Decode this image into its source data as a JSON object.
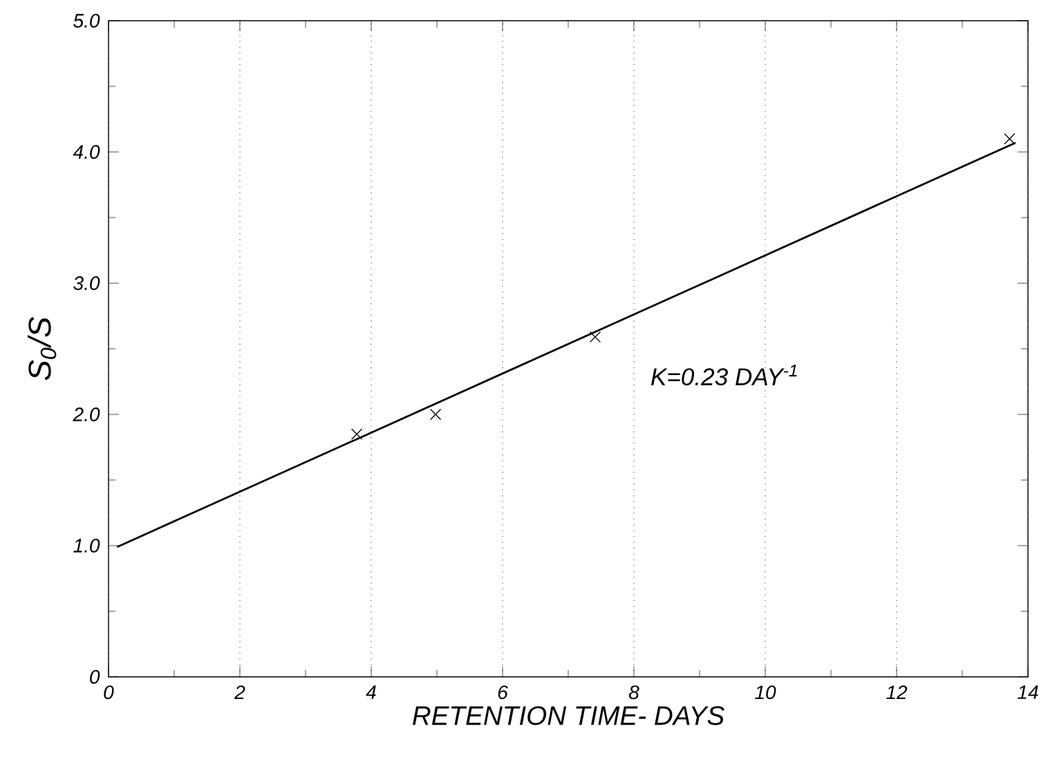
{
  "chart_data": {
    "type": "scatter",
    "xlabel": "RETENTION TIME- DAYS",
    "ylabel": "S$_{0}$/S",
    "xlim": [
      0,
      14
    ],
    "ylim": [
      0,
      5.0
    ],
    "xticks": [
      0,
      2,
      4,
      6,
      8,
      10,
      12,
      14
    ],
    "yticks": [
      0,
      {
        "value": 1,
        "label": "1.0"
      },
      {
        "value": 2,
        "label": "2.0"
      },
      {
        "value": 3,
        "label": "3.0"
      },
      {
        "value": 4,
        "label": "4.0"
      },
      {
        "value": 5,
        "label": "5.0"
      }
    ],
    "marker": "cross",
    "grid": "x",
    "annotations": [
      "K=0.23 DAY$^{-1}$"
    ],
    "series": [
      {
        "type": "scatter",
        "color": "#000000",
        "x": [
          3.78,
          4.98,
          7.41,
          13.72
        ],
        "values": [
          1.85,
          2.0,
          2.59,
          4.1
        ]
      },
      {
        "type": "line",
        "color": "#000000",
        "marker": "none",
        "x": [
          0.13,
          13.81
        ],
        "values": [
          0.99,
          4.07
        ]
      }
    ]
  }
}
